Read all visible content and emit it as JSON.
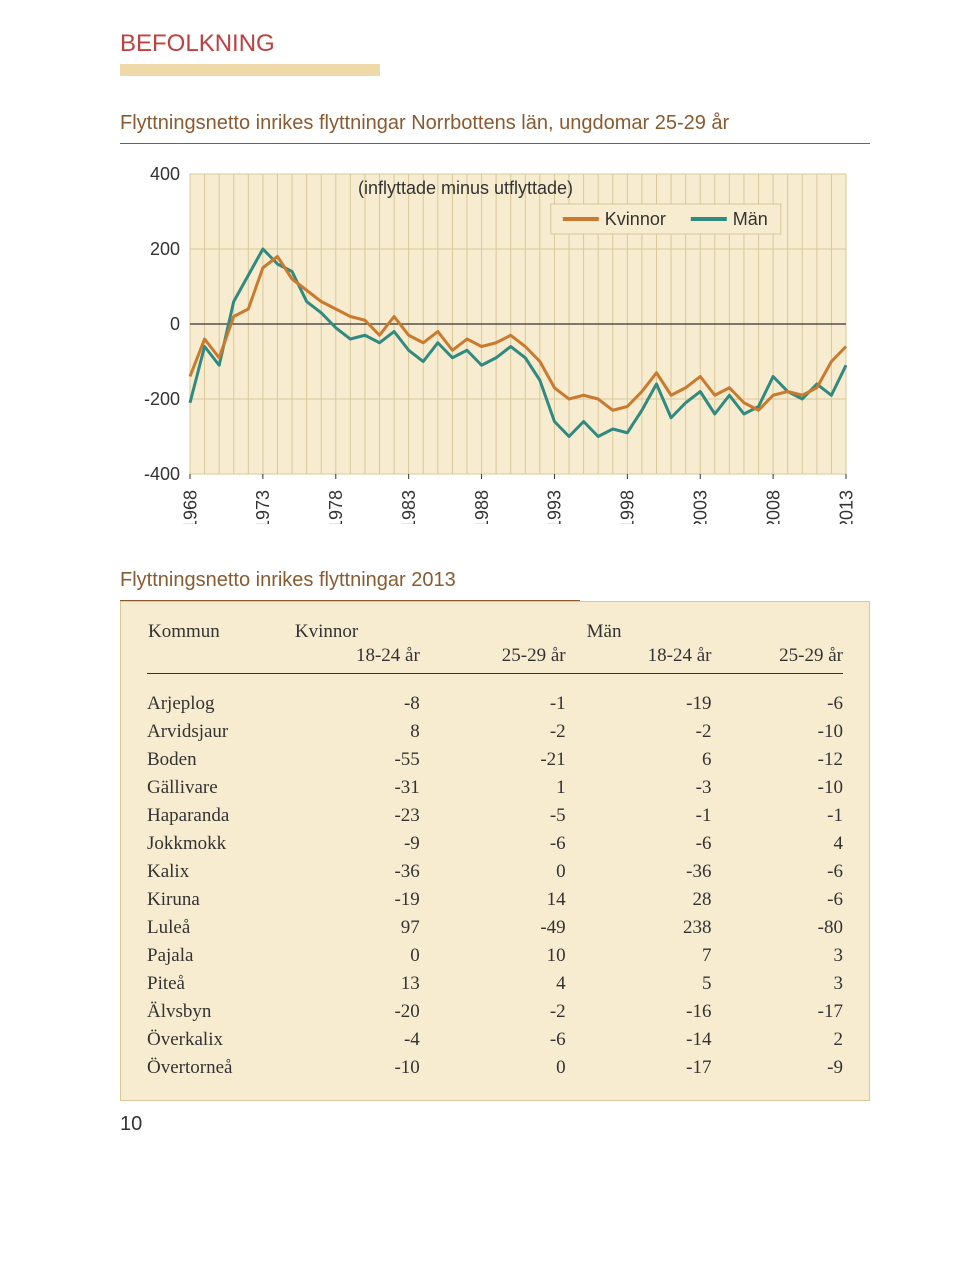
{
  "header": {
    "section": "BEFOLKNING"
  },
  "chart": {
    "title": "Flyttningsnetto inrikes flyttningar Norrbottens län, ungdomar 25-29 år",
    "subtitle": "(inflyttade minus utflyttade)",
    "legend": {
      "kvinnor": "Kvinnor",
      "man": "Män"
    },
    "colors": {
      "kvinnor": "#c97a2e",
      "man": "#2f8a80",
      "grid": "#d8c89a",
      "plot_bg": "#f7ecd0",
      "axis": "#333333"
    },
    "y": {
      "min": -400,
      "max": 400,
      "ticks": [
        -400,
        -200,
        0,
        200,
        400
      ]
    },
    "x": {
      "min": 1968,
      "max": 2013,
      "ticks": [
        1968,
        1973,
        1978,
        1983,
        1988,
        1993,
        1998,
        2003,
        2008,
        2013
      ]
    },
    "series": {
      "kvinnor": [
        [
          1968,
          -140
        ],
        [
          1969,
          -40
        ],
        [
          1970,
          -90
        ],
        [
          1971,
          20
        ],
        [
          1972,
          40
        ],
        [
          1973,
          150
        ],
        [
          1974,
          180
        ],
        [
          1975,
          120
        ],
        [
          1976,
          90
        ],
        [
          1977,
          60
        ],
        [
          1978,
          40
        ],
        [
          1979,
          20
        ],
        [
          1980,
          10
        ],
        [
          1981,
          -30
        ],
        [
          1982,
          20
        ],
        [
          1983,
          -30
        ],
        [
          1984,
          -50
        ],
        [
          1985,
          -20
        ],
        [
          1986,
          -70
        ],
        [
          1987,
          -40
        ],
        [
          1988,
          -60
        ],
        [
          1989,
          -50
        ],
        [
          1990,
          -30
        ],
        [
          1991,
          -60
        ],
        [
          1992,
          -100
        ],
        [
          1993,
          -170
        ],
        [
          1994,
          -200
        ],
        [
          1995,
          -190
        ],
        [
          1996,
          -200
        ],
        [
          1997,
          -230
        ],
        [
          1998,
          -220
        ],
        [
          1999,
          -180
        ],
        [
          2000,
          -130
        ],
        [
          2001,
          -190
        ],
        [
          2002,
          -170
        ],
        [
          2003,
          -140
        ],
        [
          2004,
          -190
        ],
        [
          2005,
          -170
        ],
        [
          2006,
          -210
        ],
        [
          2007,
          -230
        ],
        [
          2008,
          -190
        ],
        [
          2009,
          -180
        ],
        [
          2010,
          -190
        ],
        [
          2011,
          -170
        ],
        [
          2012,
          -100
        ],
        [
          2013,
          -60
        ]
      ],
      "man": [
        [
          1968,
          -210
        ],
        [
          1969,
          -60
        ],
        [
          1970,
          -110
        ],
        [
          1971,
          60
        ],
        [
          1972,
          130
        ],
        [
          1973,
          200
        ],
        [
          1974,
          160
        ],
        [
          1975,
          140
        ],
        [
          1976,
          60
        ],
        [
          1977,
          30
        ],
        [
          1978,
          -10
        ],
        [
          1979,
          -40
        ],
        [
          1980,
          -30
        ],
        [
          1981,
          -50
        ],
        [
          1982,
          -20
        ],
        [
          1983,
          -70
        ],
        [
          1984,
          -100
        ],
        [
          1985,
          -50
        ],
        [
          1986,
          -90
        ],
        [
          1987,
          -70
        ],
        [
          1988,
          -110
        ],
        [
          1989,
          -90
        ],
        [
          1990,
          -60
        ],
        [
          1991,
          -90
        ],
        [
          1992,
          -150
        ],
        [
          1993,
          -260
        ],
        [
          1994,
          -300
        ],
        [
          1995,
          -260
        ],
        [
          1996,
          -300
        ],
        [
          1997,
          -280
        ],
        [
          1998,
          -290
        ],
        [
          1999,
          -230
        ],
        [
          2000,
          -160
        ],
        [
          2001,
          -250
        ],
        [
          2002,
          -210
        ],
        [
          2003,
          -180
        ],
        [
          2004,
          -240
        ],
        [
          2005,
          -190
        ],
        [
          2006,
          -240
        ],
        [
          2007,
          -220
        ],
        [
          2008,
          -140
        ],
        [
          2009,
          -180
        ],
        [
          2010,
          -200
        ],
        [
          2011,
          -160
        ],
        [
          2012,
          -190
        ],
        [
          2013,
          -110
        ]
      ]
    }
  },
  "table": {
    "title": "Flyttningsnetto inrikes flyttningar 2013",
    "header": {
      "kommun": "Kommun",
      "kvinnor": "Kvinnor",
      "man": "Män",
      "col1": "18-24 år",
      "col2": "25-29 år",
      "col3": "18-24 år",
      "col4": "25-29 år"
    },
    "rows": [
      {
        "name": "Arjeplog",
        "v": [
          -8,
          -1,
          -19,
          -6
        ]
      },
      {
        "name": "Arvidsjaur",
        "v": [
          8,
          -2,
          -2,
          -10
        ]
      },
      {
        "name": "Boden",
        "v": [
          -55,
          -21,
          6,
          -12
        ]
      },
      {
        "name": "Gällivare",
        "v": [
          -31,
          1,
          -3,
          -10
        ]
      },
      {
        "name": "Haparanda",
        "v": [
          -23,
          -5,
          -1,
          -1
        ]
      },
      {
        "name": "Jokkmokk",
        "v": [
          -9,
          -6,
          -6,
          4
        ]
      },
      {
        "name": "Kalix",
        "v": [
          -36,
          0,
          -36,
          -6
        ]
      },
      {
        "name": "Kiruna",
        "v": [
          -19,
          14,
          28,
          -6
        ]
      },
      {
        "name": "Luleå",
        "v": [
          97,
          -49,
          238,
          -80
        ]
      },
      {
        "name": "Pajala",
        "v": [
          0,
          10,
          7,
          3
        ]
      },
      {
        "name": "Piteå",
        "v": [
          13,
          4,
          5,
          3
        ]
      },
      {
        "name": "Älvsbyn",
        "v": [
          -20,
          -2,
          -16,
          -17
        ]
      },
      {
        "name": "Överkalix",
        "v": [
          -4,
          -6,
          -14,
          2
        ]
      },
      {
        "name": "Övertorneå",
        "v": [
          -10,
          0,
          -17,
          -9
        ]
      }
    ]
  },
  "page_number": "10"
}
